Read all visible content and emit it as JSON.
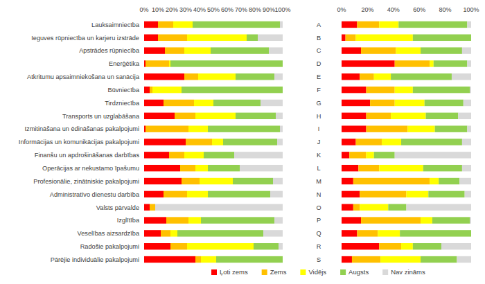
{
  "chart_data": [
    {
      "type": "bar",
      "orientation": "horizontal",
      "stacked": true,
      "grid": false,
      "categories": [
        "Lauksaimniecība",
        "Ieguves rūpniecība un karjeru izstrāde",
        "Apstrādes rūpniecība",
        "Enerģētika",
        "Atkritumu apsaimniekošana un sanācija",
        "Būvniecība",
        "Tirdzniecība",
        "Transports un uzglabāšana",
        "Izmitināšana un ēdināšanas pakalpojumi",
        "Informācijas un komunikācijas pakalpojumi",
        "Finanšu un apdrošināšanas darbības",
        "Operācijas ar nekustamo īpašumu",
        "Profesionālie, zinātniskie pakalpojumi",
        "Administratīvo  dienestu darbība",
        "Valsts pārvalde",
        "Izglītība",
        "Veselības aizsardzība",
        "Radošie pakalpojumi",
        "Pārējie individuālie pakalpojumi"
      ],
      "xlim": [
        0,
        100
      ],
      "xticks": [
        {
          "value": 0,
          "label": "0%"
        },
        {
          "value": 10,
          "label": "10%"
        },
        {
          "value": 20,
          "label": "20%"
        },
        {
          "value": 30,
          "label": "30%"
        },
        {
          "value": 40,
          "label": "40%"
        },
        {
          "value": 50,
          "label": "50%"
        },
        {
          "value": 60,
          "label": "60%"
        },
        {
          "value": 70,
          "label": "70%"
        },
        {
          "value": 80,
          "label": "80%"
        },
        {
          "value": 90,
          "label": "90%"
        },
        {
          "value": 100,
          "label": "100%"
        }
      ],
      "legend": "bottom",
      "series": [
        {
          "name": "Ļoti zems",
          "color": "#ff0000",
          "values": [
            10,
            10,
            15,
            1,
            29,
            4,
            14,
            22,
            1,
            30,
            18,
            26,
            27,
            14,
            4,
            16,
            12,
            19,
            37
          ]
        },
        {
          "name": "Zems",
          "color": "#ffc000",
          "values": [
            11,
            21,
            14,
            17,
            10,
            2,
            22,
            15,
            31,
            19,
            11,
            11,
            13,
            17,
            4,
            16,
            7,
            12,
            4
          ]
        },
        {
          "name": "Vidējs",
          "color": "#ffff00",
          "values": [
            14,
            43,
            19,
            1,
            27,
            21,
            14,
            29,
            14,
            8,
            14,
            9,
            24,
            15,
            0,
            9,
            5,
            48,
            11
          ]
        },
        {
          "name": "Augsts",
          "color": "#92d050",
          "values": [
            63,
            8,
            42,
            81,
            28,
            73,
            34,
            29,
            52,
            39,
            22,
            23,
            29,
            45,
            0,
            53,
            62,
            18,
            48
          ]
        },
        {
          "name": "Nav zināms",
          "color": "#d9d9d9",
          "values": [
            2,
            18,
            10,
            0,
            6,
            0,
            16,
            5,
            2,
            4,
            35,
            31,
            7,
            9,
            92,
            6,
            14,
            3,
            0
          ]
        }
      ]
    },
    {
      "type": "bar",
      "orientation": "horizontal",
      "stacked": true,
      "grid": false,
      "categories": [
        "A",
        "B",
        "C",
        "D",
        "E",
        "F",
        "G",
        "H",
        "I",
        "J",
        "K",
        "L",
        "M",
        "N",
        "O",
        "P",
        "Q",
        "R",
        "S"
      ],
      "xlim": [
        0,
        100
      ],
      "xticks": [
        {
          "value": 0,
          "label": "0%"
        },
        {
          "value": 20,
          "label": "20%"
        },
        {
          "value": 40,
          "label": "40%"
        },
        {
          "value": 60,
          "label": "60%"
        },
        {
          "value": 80,
          "label": "80%"
        },
        {
          "value": 100,
          "label": "100%"
        }
      ],
      "series": [
        {
          "color": "#ff0000",
          "values": [
            12,
            3,
            15,
            41,
            14,
            19,
            22,
            19,
            19,
            11,
            6,
            13,
            9,
            14,
            9,
            15,
            12,
            29,
            8
          ]
        },
        {
          "color": "#ffc000",
          "values": [
            17,
            8,
            27,
            27,
            11,
            22,
            19,
            19,
            32,
            20,
            13,
            16,
            59,
            36,
            5,
            46,
            16,
            17,
            22
          ]
        },
        {
          "color": "#ffff00",
          "values": [
            15,
            44,
            19,
            3,
            13,
            14,
            23,
            27,
            21,
            15,
            6,
            34,
            7,
            17,
            22,
            9,
            17,
            9,
            31
          ]
        },
        {
          "color": "#92d050",
          "values": [
            53,
            45,
            32,
            26,
            47,
            44,
            30,
            25,
            25,
            47,
            16,
            30,
            16,
            28,
            14,
            29,
            55,
            22,
            28
          ]
        },
        {
          "color": "#d9d9d9",
          "values": [
            3,
            0,
            7,
            3,
            15,
            1,
            6,
            10,
            3,
            7,
            59,
            7,
            9,
            5,
            50,
            1,
            0,
            23,
            11
          ]
        }
      ]
    }
  ]
}
